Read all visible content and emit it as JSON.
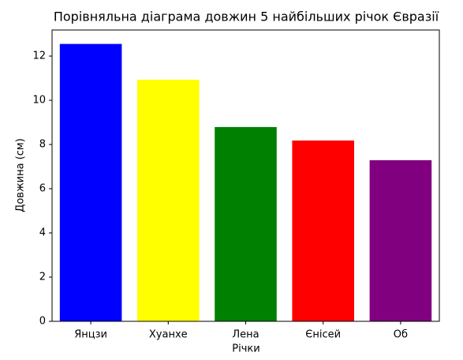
{
  "chart_data": {
    "type": "bar",
    "title": "Порівняльна діаграма довжин 5 найбільших річок Євразії",
    "x_label": "Річки",
    "y_label": "Довжина (см)",
    "categories": [
      "Янцзи",
      "Хуанхе",
      "Лена",
      "Єнісей",
      "Об"
    ],
    "values": [
      12.55,
      10.93,
      8.79,
      8.18,
      7.29
    ],
    "colors": [
      "#0000ff",
      "#ffff00",
      "#008000",
      "#ff0000",
      "#800080"
    ],
    "ylim": [
      0,
      13.18
    ],
    "yticks": [
      0,
      2,
      4,
      6,
      8,
      10,
      12
    ],
    "grid": false
  }
}
